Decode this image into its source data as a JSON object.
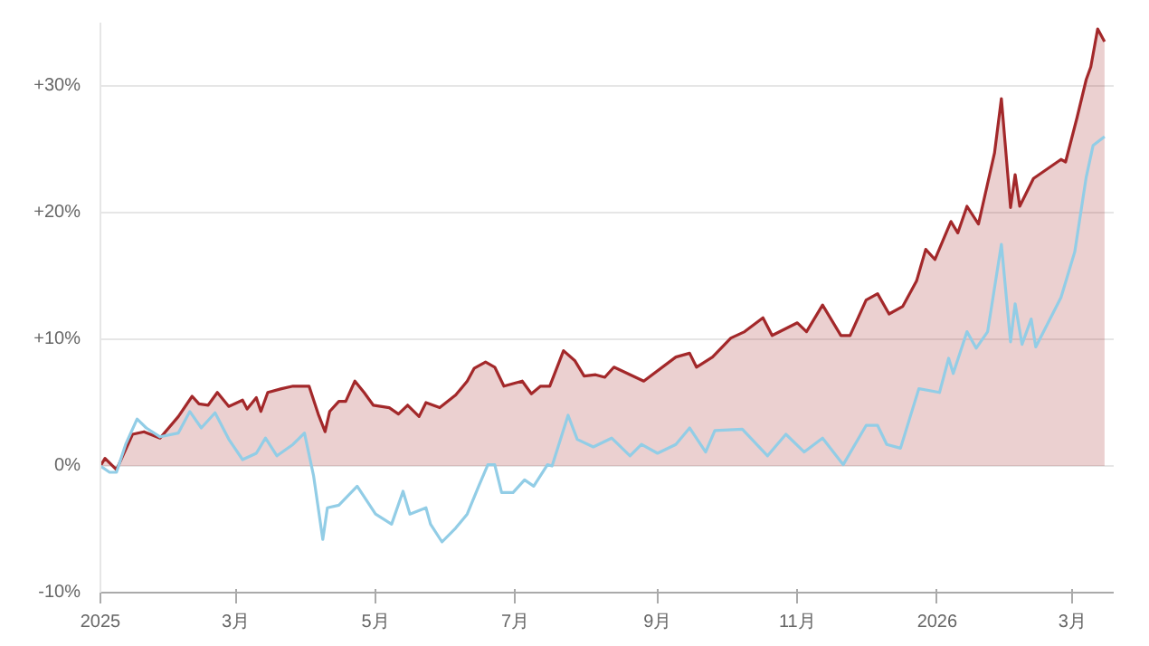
{
  "chart_data": {
    "type": "area",
    "xlim": [
      "2025-01-01",
      "2026-03-19"
    ],
    "xticks": [
      {
        "value": "2025-01-01",
        "label": "2025"
      },
      {
        "value": "2025-03-01",
        "label": "3月"
      },
      {
        "value": "2025-05-01",
        "label": "5月"
      },
      {
        "value": "2025-07-01",
        "label": "7月"
      },
      {
        "value": "2025-09-01",
        "label": "9月"
      },
      {
        "value": "2025-11-01",
        "label": "11月"
      },
      {
        "value": "2026-01-01",
        "label": "2026"
      },
      {
        "value": "2026-03-01",
        "label": "3月"
      }
    ],
    "ylim": [
      -10,
      35
    ],
    "yticks": [
      {
        "value": -10,
        "label": "-10%"
      },
      {
        "value": 0,
        "label": "0%"
      },
      {
        "value": 10,
        "label": "+10%"
      },
      {
        "value": 20,
        "label": "+20%"
      },
      {
        "value": 30,
        "label": "+30%"
      }
    ],
    "grid": "y",
    "marker": "none",
    "line_style": "solid",
    "series": [
      {
        "color": "#a3282a",
        "x": [
          "2025-01-01",
          "2025-01-03",
          "2025-01-08",
          "2025-01-15",
          "2025-01-20",
          "2025-01-27",
          "2025-02-04",
          "2025-02-10",
          "2025-02-13",
          "2025-02-17",
          "2025-02-21",
          "2025-02-26",
          "2025-03-04",
          "2025-03-06",
          "2025-03-10",
          "2025-03-12",
          "2025-03-15",
          "2025-03-21",
          "2025-03-26",
          "2025-04-02",
          "2025-04-06",
          "2025-04-09",
          "2025-04-11",
          "2025-04-15",
          "2025-04-18",
          "2025-04-22",
          "2025-04-26",
          "2025-04-30",
          "2025-05-07",
          "2025-05-11",
          "2025-05-15",
          "2025-05-20",
          "2025-05-23",
          "2025-05-29",
          "2025-06-05",
          "2025-06-10",
          "2025-06-13",
          "2025-06-18",
          "2025-06-22",
          "2025-06-26",
          "2025-07-04",
          "2025-07-08",
          "2025-07-12",
          "2025-07-16",
          "2025-07-22",
          "2025-07-27",
          "2025-07-31",
          "2025-08-05",
          "2025-08-09",
          "2025-08-13",
          "2025-08-26",
          "2025-09-09",
          "2025-09-15",
          "2025-09-18",
          "2025-09-25",
          "2025-10-03",
          "2025-10-09",
          "2025-10-17",
          "2025-10-21",
          "2025-11-01",
          "2025-11-05",
          "2025-11-12",
          "2025-11-20",
          "2025-11-24",
          "2025-12-01",
          "2025-12-06",
          "2025-12-11",
          "2025-12-17",
          "2025-12-23",
          "2025-12-27",
          "2025-12-31",
          "2026-01-07",
          "2026-01-10",
          "2026-01-14",
          "2026-01-19",
          "2026-01-26",
          "2026-01-29",
          "2026-02-02",
          "2026-02-04",
          "2026-02-06",
          "2026-02-12",
          "2026-02-24",
          "2026-02-26",
          "2026-03-03",
          "2026-03-07",
          "2026-03-09",
          "2026-03-12",
          "2026-03-15"
        ],
        "values": [
          0,
          0.6,
          -0.3,
          2.5,
          2.7,
          2.2,
          3.9,
          5.5,
          4.9,
          4.8,
          5.8,
          4.7,
          5.2,
          4.5,
          5.4,
          4.3,
          5.8,
          6.1,
          6.3,
          6.3,
          4.1,
          2.7,
          4.3,
          5.1,
          5.1,
          6.7,
          5.8,
          4.8,
          4.6,
          4.1,
          4.8,
          3.9,
          5.0,
          4.6,
          5.6,
          6.7,
          7.7,
          8.2,
          7.8,
          6.3,
          6.7,
          5.7,
          6.3,
          6.3,
          9.1,
          8.3,
          7.1,
          7.2,
          7.0,
          7.8,
          6.7,
          8.6,
          8.9,
          7.8,
          8.6,
          10.1,
          10.6,
          11.7,
          10.3,
          11.3,
          10.6,
          12.7,
          10.3,
          10.3,
          13.1,
          13.6,
          12.0,
          12.6,
          14.6,
          17.1,
          16.3,
          19.3,
          18.4,
          20.5,
          19.1,
          24.7,
          29.0,
          20.4,
          23.0,
          20.5,
          22.7,
          24.2,
          24.0,
          27.5,
          30.5,
          31.5,
          34.5,
          33.5
        ]
      },
      {
        "type": "line",
        "color": "#92cde6",
        "x": [
          "2025-01-01",
          "2025-01-05",
          "2025-01-08",
          "2025-01-12",
          "2025-01-17",
          "2025-01-21",
          "2025-01-27",
          "2025-02-04",
          "2025-02-09",
          "2025-02-14",
          "2025-02-20",
          "2025-02-26",
          "2025-03-04",
          "2025-03-10",
          "2025-03-14",
          "2025-03-19",
          "2025-03-26",
          "2025-03-31",
          "2025-04-04",
          "2025-04-08",
          "2025-04-10",
          "2025-04-15",
          "2025-04-23",
          "2025-05-01",
          "2025-05-08",
          "2025-05-13",
          "2025-05-16",
          "2025-05-23",
          "2025-05-25",
          "2025-05-30",
          "2025-06-05",
          "2025-06-10",
          "2025-06-15",
          "2025-06-19",
          "2025-06-22",
          "2025-06-25",
          "2025-06-30",
          "2025-07-05",
          "2025-07-09",
          "2025-07-15",
          "2025-07-17",
          "2025-07-24",
          "2025-07-28",
          "2025-08-04",
          "2025-08-12",
          "2025-08-20",
          "2025-08-25",
          "2025-09-01",
          "2025-09-09",
          "2025-09-15",
          "2025-09-22",
          "2025-09-26",
          "2025-10-08",
          "2025-10-19",
          "2025-10-27",
          "2025-11-04",
          "2025-11-12",
          "2025-11-21",
          "2025-12-01",
          "2025-12-06",
          "2025-12-10",
          "2025-12-16",
          "2025-12-24",
          "2026-01-02",
          "2026-01-06",
          "2026-01-08",
          "2026-01-14",
          "2026-01-18",
          "2026-01-23",
          "2026-01-29",
          "2026-02-02",
          "2026-02-04",
          "2026-02-07",
          "2026-02-11",
          "2026-02-13",
          "2026-02-24",
          "2026-03-02",
          "2026-03-07",
          "2026-03-10",
          "2026-03-15"
        ],
        "values": [
          0,
          -0.5,
          -0.5,
          1.7,
          3.7,
          3.0,
          2.3,
          2.6,
          4.3,
          3.0,
          4.2,
          2.1,
          0.5,
          1.0,
          2.2,
          0.8,
          1.7,
          2.6,
          -0.8,
          -5.8,
          -3.3,
          -3.1,
          -1.6,
          -3.8,
          -4.6,
          -2.0,
          -3.8,
          -3.3,
          -4.6,
          -6.0,
          -4.9,
          -3.8,
          -1.6,
          0.1,
          0.1,
          -2.1,
          -2.1,
          -1.1,
          -1.6,
          0.1,
          0,
          4.0,
          2.1,
          1.5,
          2.2,
          0.8,
          1.7,
          1.0,
          1.7,
          3.0,
          1.1,
          2.8,
          2.9,
          0.8,
          2.5,
          1.1,
          2.2,
          0.1,
          3.2,
          3.2,
          1.7,
          1.4,
          6.1,
          5.8,
          8.5,
          7.3,
          10.6,
          9.3,
          10.6,
          17.5,
          9.8,
          12.8,
          9.6,
          11.6,
          9.4,
          13.3,
          16.9,
          22.8,
          25.3,
          26.0
        ]
      }
    ]
  }
}
